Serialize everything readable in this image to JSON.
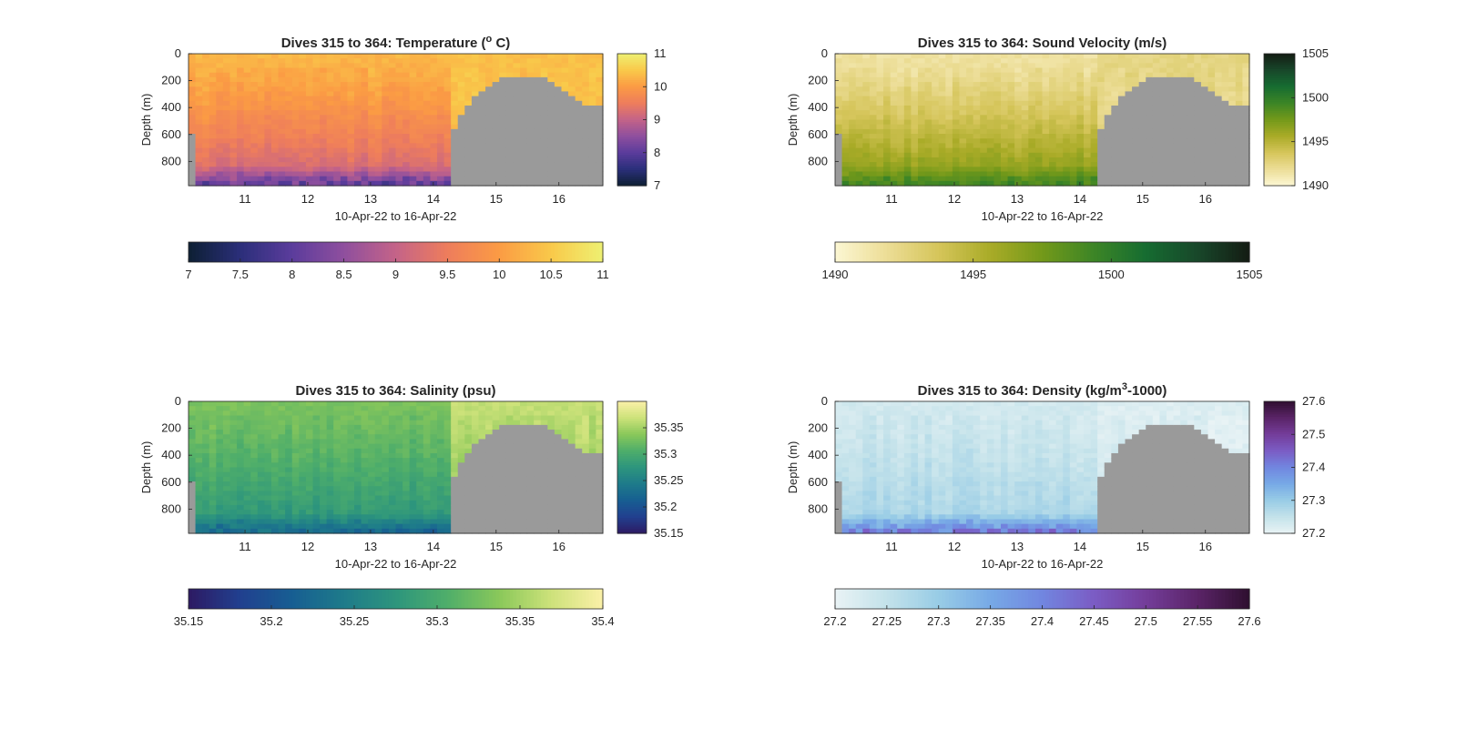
{
  "figure": {
    "panels": [
      {
        "id": "temperature",
        "title": "Dives 315 to 364: Temperature (",
        "title_sup": "o",
        "title_end": " C)",
        "ylabel": "Depth (m)",
        "xlabel": "10-Apr-22 to 16-Apr-22",
        "yticks": [
          "0",
          "200",
          "400",
          "600",
          "800"
        ],
        "xticks": [
          "11",
          "12",
          "13",
          "14",
          "15",
          "16"
        ],
        "cbar_ticks": [
          "7",
          "8",
          "9",
          "10",
          "11"
        ],
        "hbar_ticks": [
          "7",
          "7.5",
          "8",
          "8.5",
          "9",
          "9.5",
          "10",
          "10.5",
          "11"
        ]
      },
      {
        "id": "sound-velocity",
        "title": "Dives 315 to 364: Sound Velocity (m/s)",
        "title_sup": "",
        "title_end": "",
        "ylabel": "Depth (m)",
        "xlabel": "10-Apr-22 to 16-Apr-22",
        "yticks": [
          "0",
          "200",
          "400",
          "600",
          "800"
        ],
        "xticks": [
          "11",
          "12",
          "13",
          "14",
          "15",
          "16"
        ],
        "cbar_ticks": [
          "1490",
          "1495",
          "1500",
          "1505"
        ],
        "hbar_ticks": [
          "1490",
          "1495",
          "1500",
          "1505"
        ]
      },
      {
        "id": "salinity",
        "title": "Dives 315 to 364: Salinity (psu)",
        "title_sup": "",
        "title_end": "",
        "ylabel": "Depth (m)",
        "xlabel": "10-Apr-22 to 16-Apr-22",
        "yticks": [
          "0",
          "200",
          "400",
          "600",
          "800"
        ],
        "xticks": [
          "11",
          "12",
          "13",
          "14",
          "15",
          "16"
        ],
        "cbar_ticks": [
          "35.15",
          "35.2",
          "35.25",
          "35.3",
          "35.35"
        ],
        "hbar_ticks": [
          "35.15",
          "35.2",
          "35.25",
          "35.3",
          "35.35",
          "35.4"
        ]
      },
      {
        "id": "density",
        "title": "Dives 315 to 364: Density (kg/m",
        "title_sup": "3",
        "title_end": "-1000)",
        "ylabel": "Depth (m)",
        "xlabel": "10-Apr-22 to 16-Apr-22",
        "yticks": [
          "0",
          "200",
          "400",
          "600",
          "800"
        ],
        "xticks": [
          "11",
          "12",
          "13",
          "14",
          "15",
          "16"
        ],
        "cbar_ticks": [
          "27.2",
          "27.3",
          "27.4",
          "27.5",
          "27.6"
        ],
        "hbar_ticks": [
          "27.2",
          "27.25",
          "27.3",
          "27.35",
          "27.4",
          "27.45",
          "27.5",
          "27.55",
          "27.6"
        ]
      }
    ]
  },
  "chart_data": [
    {
      "type": "heatmap",
      "variable": "Temperature",
      "x_range": [
        10.1,
        16.7
      ],
      "y_range": [
        0,
        980
      ],
      "y_reversed": true,
      "x_tick_values": [
        11,
        12,
        13,
        14,
        15,
        16
      ],
      "y_tick_values": [
        0,
        200,
        400,
        600,
        800
      ],
      "color_range": [
        7,
        11
      ],
      "colorbar_tick_values": [
        7,
        8,
        9,
        10,
        11
      ],
      "horizontal_colorbar_tick_values": [
        7,
        7.5,
        8,
        8.5,
        9,
        9.5,
        10,
        10.5,
        11
      ],
      "colormap": [
        "#0d1f33",
        "#2b2f7a",
        "#5b3c9c",
        "#8f4f9e",
        "#c46388",
        "#ee7d5c",
        "#fb9b44",
        "#f9c94a",
        "#eef072"
      ],
      "data_end_x": 14.3,
      "profile": {
        "surface": 10.3,
        "deep": 9.0,
        "bottom": 8.0,
        "late_surface": 10.4
      }
    },
    {
      "type": "heatmap",
      "variable": "Sound Velocity",
      "x_range": [
        10.1,
        16.7
      ],
      "y_range": [
        0,
        980
      ],
      "y_reversed": true,
      "x_tick_values": [
        11,
        12,
        13,
        14,
        15,
        16
      ],
      "y_tick_values": [
        0,
        200,
        400,
        600,
        800
      ],
      "color_range": [
        1490,
        1505
      ],
      "colorbar_tick_values": [
        1490,
        1495,
        1500,
        1505
      ],
      "horizontal_colorbar_tick_values": [
        1490,
        1495,
        1500,
        1505
      ],
      "colormap": [
        "#fcf7d3",
        "#ecdd96",
        "#d5c55a",
        "#a9ab27",
        "#73991a",
        "#3c8526",
        "#166c31",
        "#18472a",
        "#141c13"
      ],
      "data_end_x": 14.3,
      "profile": {
        "surface": 1491.5,
        "deep": 1497.5,
        "bottom": 1499.5,
        "late_surface": 1492.5
      }
    },
    {
      "type": "heatmap",
      "variable": "Salinity",
      "x_range": [
        10.1,
        16.7
      ],
      "y_range": [
        0,
        980
      ],
      "y_reversed": true,
      "x_tick_values": [
        11,
        12,
        13,
        14,
        15,
        16
      ],
      "y_tick_values": [
        0,
        200,
        400,
        600,
        800
      ],
      "color_range": [
        35.15,
        35.4
      ],
      "colorbar_tick_values": [
        35.15,
        35.2,
        35.25,
        35.3,
        35.35
      ],
      "horizontal_colorbar_tick_values": [
        35.15,
        35.2,
        35.25,
        35.3,
        35.35,
        35.4
      ],
      "colormap": [
        "#2d1a63",
        "#21408f",
        "#175e92",
        "#1e7b8a",
        "#2d957d",
        "#4fae6a",
        "#8ac85a",
        "#cde27a",
        "#fbf0a8"
      ],
      "data_end_x": 14.3,
      "profile": {
        "surface": 35.33,
        "deep": 35.27,
        "bottom": 35.22,
        "late_surface": 35.365
      }
    },
    {
      "type": "heatmap",
      "variable": "Density",
      "x_range": [
        10.1,
        16.7
      ],
      "y_range": [
        0,
        980
      ],
      "y_reversed": true,
      "x_tick_values": [
        11,
        12,
        13,
        14,
        15,
        16
      ],
      "y_tick_values": [
        0,
        200,
        400,
        600,
        800
      ],
      "color_range": [
        27.2,
        27.6
      ],
      "colorbar_tick_values": [
        27.2,
        27.3,
        27.4,
        27.5,
        27.6
      ],
      "horizontal_colorbar_tick_values": [
        27.2,
        27.25,
        27.3,
        27.35,
        27.4,
        27.45,
        27.5,
        27.55,
        27.6
      ],
      "colormap": [
        "#e9f3f5",
        "#c3e2ea",
        "#98cce6",
        "#77a9e6",
        "#7186e0",
        "#7b5cc4",
        "#743d9a",
        "#5a2467",
        "#2f0f30"
      ],
      "data_end_x": 14.3,
      "profile": {
        "surface": 27.23,
        "deep": 27.29,
        "bottom": 27.42,
        "late_surface": 27.215
      }
    }
  ]
}
